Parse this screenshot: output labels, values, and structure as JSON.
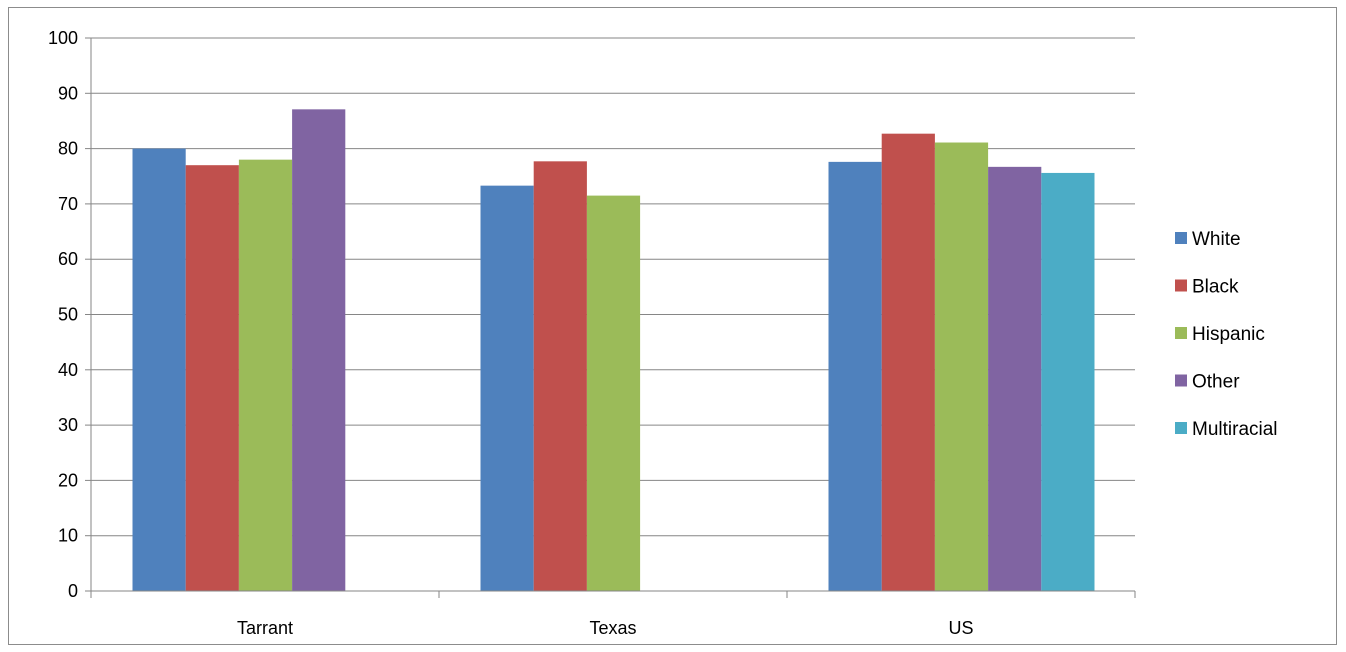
{
  "chart_data": {
    "type": "bar",
    "title": "",
    "xlabel": "",
    "ylabel": "",
    "categories": [
      "Tarrant",
      "Texas",
      "US"
    ],
    "ylim": [
      0,
      100
    ],
    "yticks": [
      0,
      10,
      20,
      30,
      40,
      50,
      60,
      70,
      80,
      90,
      100
    ],
    "grid": true,
    "legend_position": "right",
    "series": [
      {
        "name": "White",
        "color": "#4F81BD",
        "values": [
          80,
          73.3,
          77.6
        ]
      },
      {
        "name": "Black",
        "color": "#C0504D",
        "values": [
          77,
          77.7,
          82.7
        ]
      },
      {
        "name": "Hispanic",
        "color": "#9BBB59",
        "values": [
          78,
          71.5,
          81.1
        ]
      },
      {
        "name": "Other",
        "color": "#8064A2",
        "values": [
          87.1,
          null,
          76.7
        ]
      },
      {
        "name": "Multiracial",
        "color": "#4BACC6",
        "values": [
          null,
          null,
          75.6
        ]
      }
    ]
  }
}
